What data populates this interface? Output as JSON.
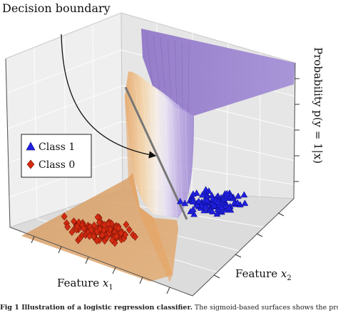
{
  "labels": {
    "decision_boundary": "Decision boundary",
    "feature_x1_prefix": "Feature ",
    "feature_x1_var": "x",
    "feature_x1_sub": "1",
    "feature_x2_prefix": "Feature ",
    "feature_x2_var": "x",
    "feature_x2_sub": "2",
    "probability_axis": "Probability p(y = 1|x)"
  },
  "legend": {
    "class1_label": "Class 1",
    "class0_label": "Class 0"
  },
  "caption": {
    "lead": "Fig 1  Illustration of a logistic regression classifier.",
    "text": " The sigmoid-based surfaces shows the probabi"
  },
  "colors": {
    "class1": "#1f1fe0",
    "class0": "#d42a10",
    "surface_low": "#e7a866",
    "surface_high": "#8e73c6",
    "boundary_line": "#777777"
  },
  "icons": [
    "triangle-marker-icon",
    "diamond-marker-icon"
  ]
}
